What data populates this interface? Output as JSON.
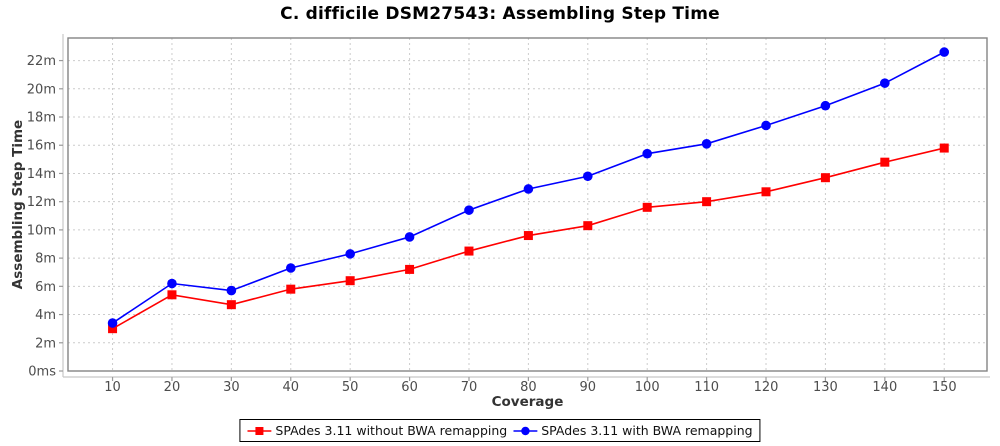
{
  "chart_data": {
    "type": "line",
    "title": "C. difficile DSM27543: Assembling Step Time",
    "xlabel": "Coverage",
    "ylabel": "Assembling Step Time",
    "x": [
      10,
      20,
      30,
      40,
      50,
      60,
      70,
      80,
      90,
      100,
      110,
      120,
      130,
      140,
      150
    ],
    "x_tick_labels": [
      "10",
      "20",
      "30",
      "40",
      "50",
      "60",
      "70",
      "80",
      "90",
      "100",
      "110",
      "120",
      "130",
      "140",
      "150"
    ],
    "y_tick_values": [
      0,
      2,
      4,
      6,
      8,
      10,
      12,
      14,
      16,
      18,
      20,
      22
    ],
    "y_tick_labels": [
      "0ms",
      "2m",
      "4m",
      "6m",
      "8m",
      "10m",
      "12m",
      "14m",
      "16m",
      "18m",
      "20m",
      "22m"
    ],
    "xlim": [
      2.5,
      157.2
    ],
    "ylim": [
      0,
      23.6
    ],
    "grid": "dashed",
    "legend_position": "bottom",
    "unit": "minutes",
    "series": [
      {
        "name": "SPAdes 3.11 without BWA remapping",
        "color": "#ff0000",
        "marker": "square",
        "values": [
          3.0,
          5.4,
          4.7,
          5.8,
          6.4,
          7.2,
          8.5,
          9.6,
          10.3,
          11.6,
          12.0,
          12.7,
          13.7,
          14.8,
          15.8
        ]
      },
      {
        "name": "SPAdes 3.11 with BWA remapping",
        "color": "#0000ff",
        "marker": "circle",
        "values": [
          3.4,
          6.2,
          5.7,
          7.3,
          8.3,
          9.5,
          11.4,
          12.9,
          13.8,
          15.4,
          16.1,
          17.4,
          18.8,
          20.4,
          22.6
        ]
      }
    ],
    "colors": {
      "background": "#ffffff",
      "grid": "#cccccc",
      "plot_border": "#848484",
      "axis_line": "#c8c8c8",
      "tick": "#9a9a9a",
      "tick_label": "#4d4d4d",
      "axis_label": "#333333",
      "title": "#000000",
      "legend_border": "#000000"
    }
  }
}
